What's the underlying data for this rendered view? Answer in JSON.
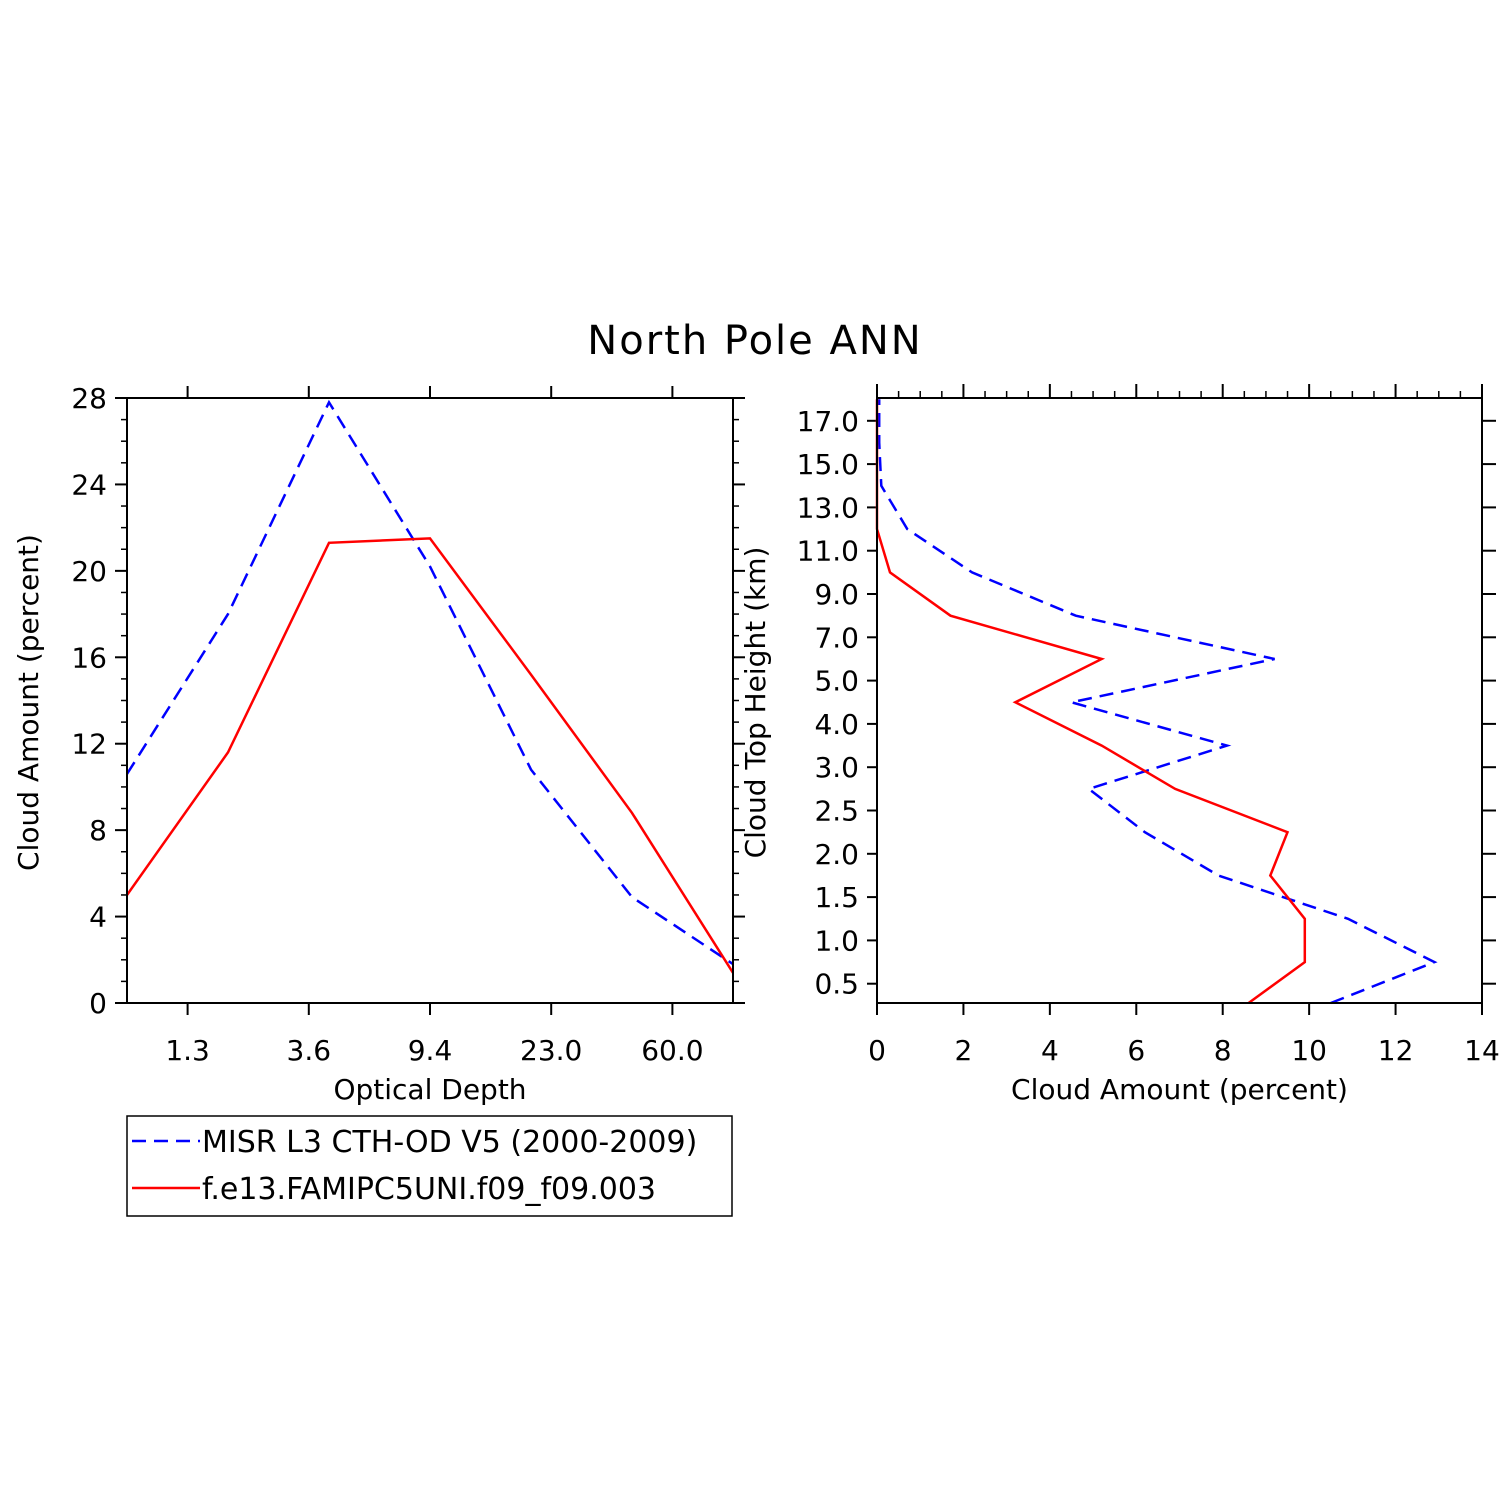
{
  "title": "North Pole ANN",
  "colors": {
    "obs": "#0000ff",
    "model": "#ff0000",
    "axis": "#000000"
  },
  "legend": {
    "entries": [
      {
        "label": "MISR L3 CTH-OD V5 (2000-2009)",
        "color": "#0000ff",
        "style": "dashed"
      },
      {
        "label": "f.e13.FAMIPC5UNI.f09_f09.003",
        "color": "#ff0000",
        "style": "solid"
      }
    ]
  },
  "chart_data": [
    {
      "type": "line",
      "xlabel": "Optical Depth",
      "ylabel": "Cloud Amount (percent)",
      "ylim": [
        0,
        28
      ],
      "yticks": [
        "0",
        "4",
        "8",
        "12",
        "16",
        "20",
        "24",
        "28"
      ],
      "xtick_labels": [
        "1.3",
        "3.6",
        "9.4",
        "23.0",
        "60.0"
      ],
      "x": [
        1,
        2,
        3,
        4,
        5,
        6,
        7
      ],
      "series": [
        {
          "name": "MISR L3 CTH-OD V5 (2000-2009)",
          "style": "dashed",
          "color": "#0000ff",
          "values": [
            10.6,
            18.0,
            27.8,
            20.2,
            10.8,
            4.9,
            1.8
          ]
        },
        {
          "name": "f.e13.FAMIPC5UNI.f09_f09.003",
          "style": "solid",
          "color": "#ff0000",
          "values": [
            5.0,
            11.6,
            21.3,
            21.5,
            15.2,
            8.8,
            1.4
          ]
        }
      ]
    },
    {
      "type": "line",
      "xlabel": "Cloud Amount (percent)",
      "ylabel": "Cloud Top Height (km)",
      "xlim": [
        0,
        14
      ],
      "xticks": [
        "0",
        "2",
        "4",
        "6",
        "8",
        "10",
        "12",
        "14"
      ],
      "height_levels": [
        "0.5",
        "1.0",
        "1.5",
        "2.0",
        "2.5",
        "3.0",
        "4.0",
        "5.0",
        "7.0",
        "9.0",
        "11.0",
        "13.0",
        "15.0",
        "17.0"
      ],
      "series": [
        {
          "name": "MISR L3 CTH-OD V5 (2000-2009)",
          "style": "dashed",
          "color": "#0000ff",
          "values": [
            10.5,
            12.9,
            10.9,
            7.9,
            6.2,
            4.9,
            8.1,
            4.5,
            9.2,
            4.6,
            2.2,
            0.7,
            0.1,
            0.05,
            0.05
          ]
        },
        {
          "name": "f.e13.FAMIPC5UNI.f09_f09.003",
          "style": "solid",
          "color": "#ff0000",
          "values": [
            8.6,
            9.9,
            9.9,
            9.1,
            9.5,
            6.9,
            5.2,
            3.2,
            5.2,
            1.7,
            0.3,
            0.0,
            0.0,
            0.0,
            0.0
          ]
        }
      ]
    }
  ]
}
